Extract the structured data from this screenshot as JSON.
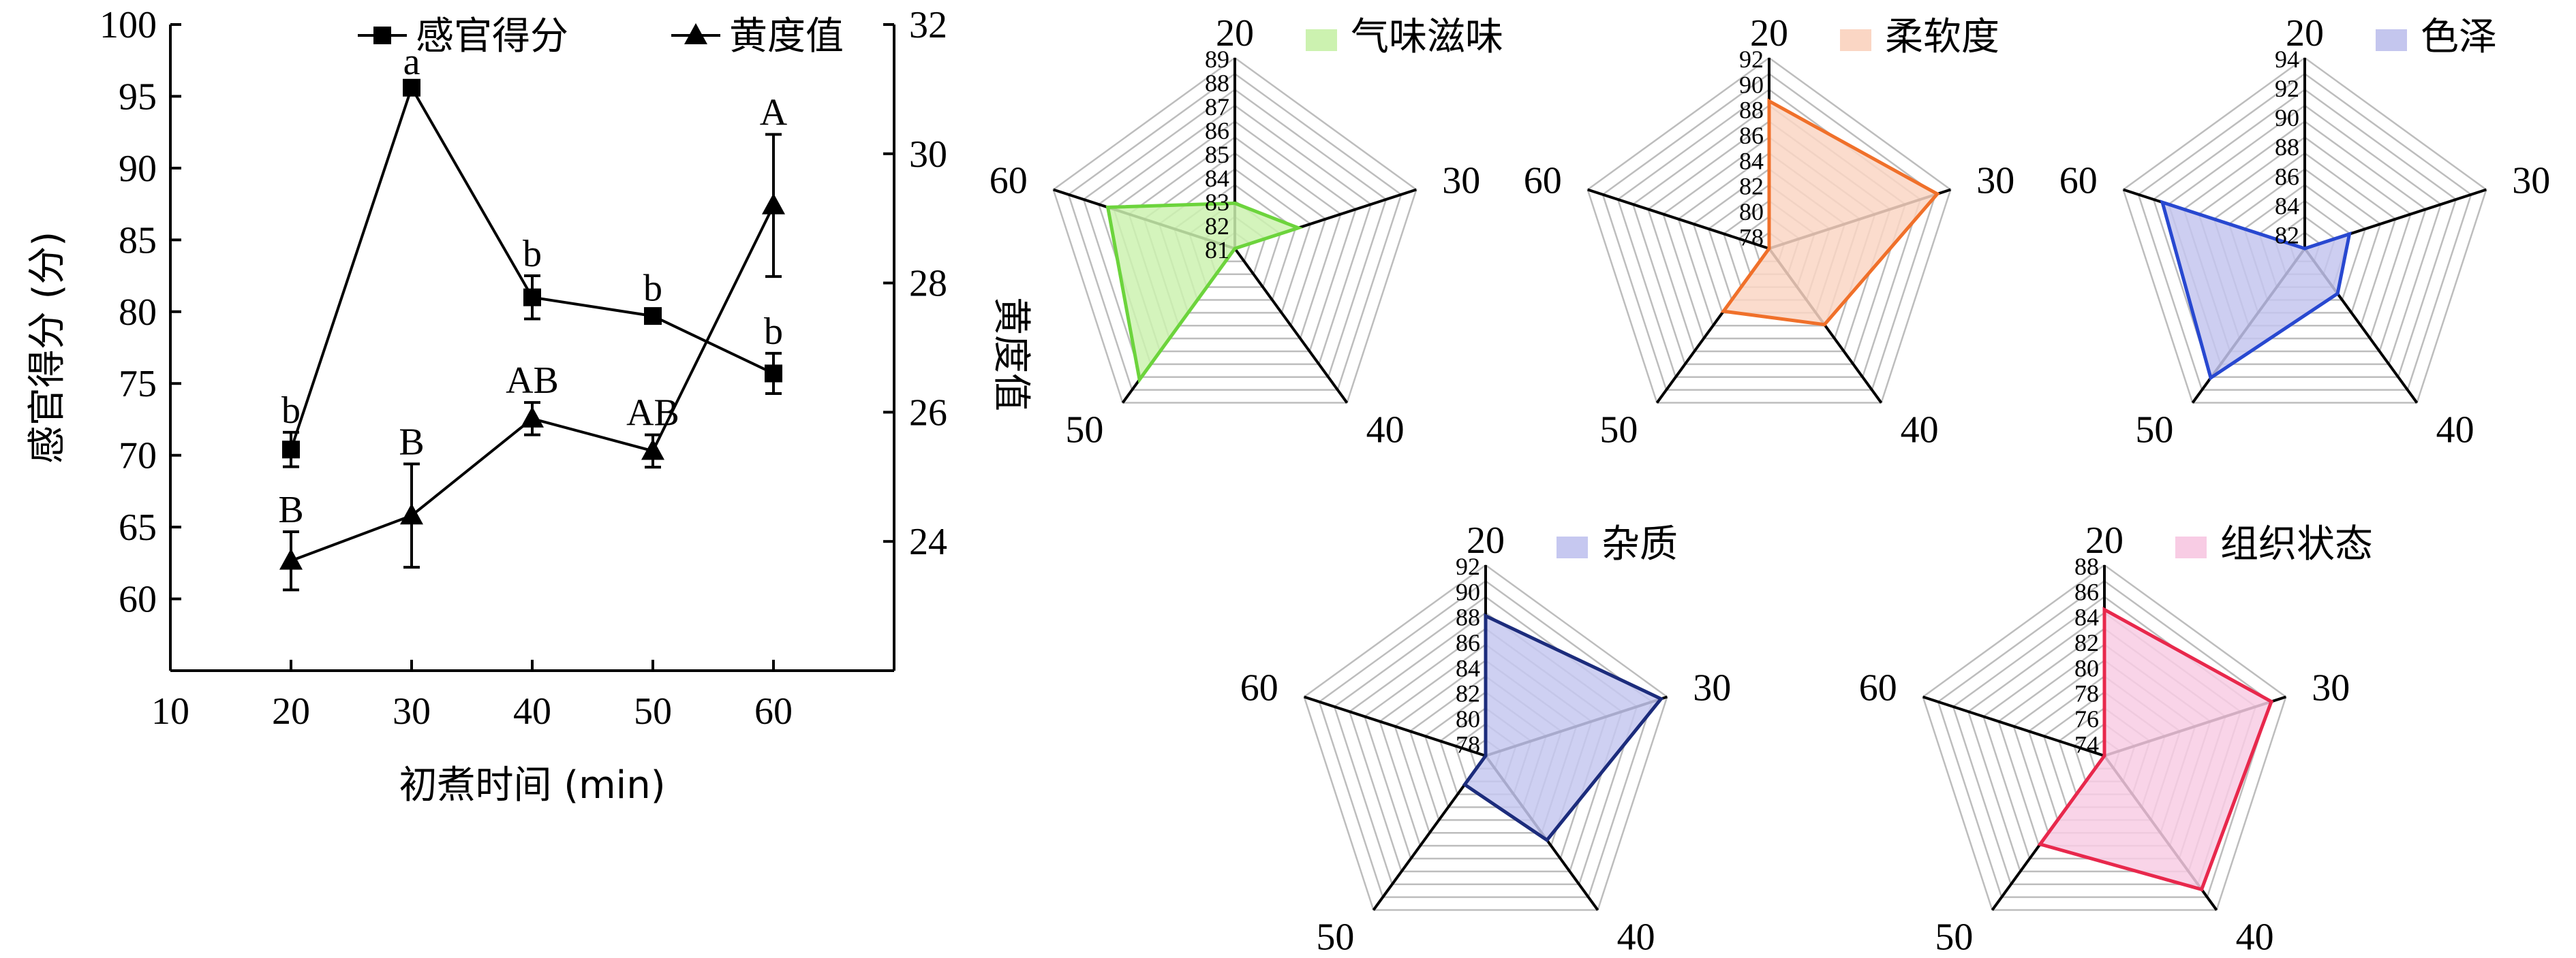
{
  "chart_data": [
    {
      "type": "line",
      "x": [
        20,
        30,
        40,
        50,
        60
      ],
      "xlabel": "初煮时间 (min)",
      "xticks": [
        "10",
        "20",
        "30",
        "40",
        "50",
        "60"
      ],
      "xlim": [
        10,
        70
      ],
      "ylabel": "感官得分 (分)",
      "yticks": [
        "60",
        "65",
        "70",
        "75",
        "80",
        "85",
        "90",
        "95",
        "100"
      ],
      "ylim": [
        55,
        100
      ],
      "y2label": "黄度值",
      "y2ticks": [
        "24",
        "26",
        "28",
        "30",
        "32"
      ],
      "y2lim": [
        22,
        32
      ],
      "legend_position": "top",
      "series": [
        {
          "name": "感官得分",
          "marker": "square",
          "axis": "left",
          "values": [
            70.4,
            95.6,
            81.0,
            79.7,
            75.7
          ],
          "errors": [
            1.2,
            0.4,
            1.5,
            0.4,
            1.4
          ],
          "labels": [
            "b",
            "a",
            "b",
            "b",
            "b"
          ]
        },
        {
          "name": "黄度值",
          "marker": "triangle",
          "axis": "right",
          "values": [
            23.7,
            24.4,
            25.9,
            25.4,
            29.2
          ],
          "errors": [
            0.45,
            0.8,
            0.25,
            0.25,
            1.1
          ],
          "labels": [
            "B",
            "B",
            "AB",
            "AB",
            "A"
          ]
        }
      ]
    },
    {
      "type": "radar",
      "title": "气味滋味",
      "color": "#6cd43c",
      "fill": "#ccf2b0",
      "axes": [
        "20",
        "30",
        "40",
        "50",
        "60"
      ],
      "ticks": [
        "81",
        "82",
        "83",
        "84",
        "85",
        "86",
        "87",
        "88",
        "89"
      ],
      "range": [
        81,
        89
      ],
      "values": [
        82.9,
        83.8,
        81.0,
        87.8,
        86.6
      ]
    },
    {
      "type": "radar",
      "title": "柔软度",
      "color": "#f0702a",
      "fill": "#fad6c4",
      "axes": [
        "20",
        "30",
        "40",
        "50",
        "60"
      ],
      "ticks": [
        "78",
        "80",
        "82",
        "84",
        "86",
        "88",
        "90",
        "92"
      ],
      "range": [
        77,
        92
      ],
      "values": [
        88.6,
        90.9,
        84.4,
        83.1,
        77.0
      ]
    },
    {
      "type": "radar",
      "title": "色泽",
      "color": "#2848d0",
      "fill": "#c4c6ee",
      "axes": [
        "20",
        "30",
        "40",
        "50",
        "60"
      ],
      "ticks": [
        "82",
        "84",
        "86",
        "88",
        "90",
        "92",
        "94"
      ],
      "range": [
        81,
        94
      ],
      "values": [
        81.0,
        84.2,
        84.8,
        91.9,
        91.2
      ]
    },
    {
      "type": "radar",
      "title": "杂质",
      "color": "#1c2c7c",
      "fill": "#c6c8f0",
      "axes": [
        "20",
        "30",
        "40",
        "50",
        "60"
      ],
      "ticks": [
        "78",
        "80",
        "82",
        "84",
        "86",
        "88",
        "90",
        "92"
      ],
      "range": [
        77,
        92
      ],
      "values": [
        88.0,
        91.5,
        85.2,
        79.8,
        77.0
      ]
    },
    {
      "type": "radar",
      "title": "组织状态",
      "color": "#e8284c",
      "fill": "#f8cce4",
      "axes": [
        "20",
        "30",
        "40",
        "50",
        "60"
      ],
      "ticks": [
        "74",
        "76",
        "78",
        "80",
        "82",
        "84",
        "86",
        "88"
      ],
      "range": [
        73,
        88
      ],
      "values": [
        84.5,
        86.8,
        86.0,
        81.6,
        73.0
      ]
    }
  ]
}
